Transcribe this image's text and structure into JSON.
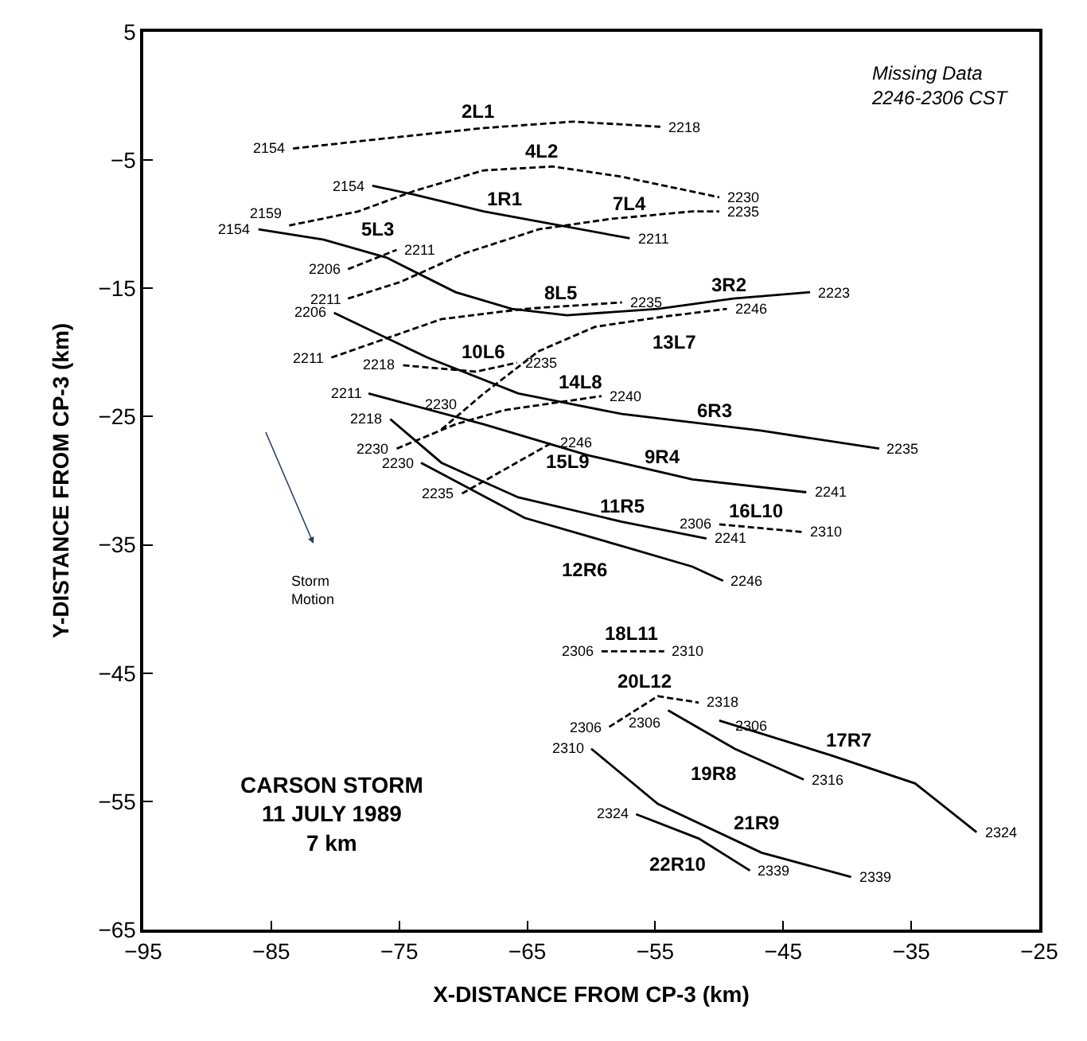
{
  "chart_data": {
    "type": "line",
    "xlabel": "X-DISTANCE FROM CP-3 (km)",
    "ylabel": "Y-DISTANCE FROM CP-3 (km)",
    "xlim": [
      -95,
      -25
    ],
    "xticks": [
      -95,
      -85,
      -75,
      -65,
      -55,
      -45,
      -35,
      -25
    ],
    "ylim": [
      -65,
      5
    ],
    "yticks": [
      5,
      -5,
      -15,
      -25,
      -35,
      -45,
      -55,
      -65
    ],
    "grid": false,
    "legend": false,
    "series": [
      {
        "name": "2L1",
        "color": "#000000",
        "line_style": "dashed",
        "x": [
          -83.3,
          -76.0,
          -68.4,
          -61.4,
          -54.6
        ],
        "values": [
          -4.1,
          -3.3,
          -2.5,
          -2.0,
          -2.4
        ]
      },
      {
        "name": "4L2",
        "color": "#000000",
        "line_style": "dashed",
        "x": [
          -83.6,
          -78.2,
          -73.8,
          -68.4,
          -63.0,
          -57.6,
          -50.0
        ],
        "values": [
          -10.1,
          -9.0,
          -7.4,
          -5.8,
          -5.5,
          -6.3,
          -7.9
        ]
      },
      {
        "name": "1R1",
        "color": "#000000",
        "line_style": "solid",
        "x": [
          -77.1,
          -73.8,
          -68.4,
          -63.0,
          -57.0
        ],
        "values": [
          -7.0,
          -7.7,
          -9.0,
          -10.0,
          -11.1
        ]
      },
      {
        "name": "5L3",
        "color": "#000000",
        "line_style": "dashed",
        "x": [
          -79.0,
          -75.2
        ],
        "values": [
          -13.5,
          -12.0
        ]
      },
      {
        "name": "3R2",
        "color": "#000000",
        "line_style": "solid",
        "x": [
          -86.0,
          -80.9,
          -76.0,
          -70.6,
          -66.2,
          -61.9,
          -54.8,
          -48.9,
          -42.9
        ],
        "values": [
          -10.4,
          -11.2,
          -12.6,
          -15.3,
          -16.6,
          -17.1,
          -16.6,
          -15.8,
          -15.3
        ]
      },
      {
        "name": "7L4",
        "color": "#000000",
        "line_style": "dashed",
        "x": [
          -79.0,
          -74.9,
          -70.0,
          -64.1,
          -58.6,
          -52.1,
          -50.0
        ],
        "values": [
          -15.8,
          -14.5,
          -12.3,
          -10.4,
          -9.6,
          -9.0,
          -9.0
        ]
      },
      {
        "name": "8L5",
        "color": "#000000",
        "line_style": "dashed",
        "x": [
          -80.3,
          -71.7,
          -65.2,
          -57.6
        ],
        "values": [
          -20.4,
          -17.4,
          -16.6,
          -16.1
        ]
      },
      {
        "name": "6R3",
        "color": "#000000",
        "line_style": "solid",
        "x": [
          -80.1,
          -72.8,
          -65.7,
          -57.6,
          -46.7,
          -37.5
        ],
        "values": [
          -16.9,
          -20.4,
          -23.2,
          -24.8,
          -26.1,
          -27.5
        ]
      },
      {
        "name": "10L6",
        "color": "#000000",
        "line_style": "dashed",
        "x": [
          -74.7,
          -69.0,
          -65.8
        ],
        "values": [
          -21.0,
          -21.5,
          -20.8
        ]
      },
      {
        "name": "13L7",
        "color": "#000000",
        "line_style": "dashed",
        "x": [
          -71.7,
          -68.4,
          -64.1,
          -59.7,
          -54.3,
          -49.4
        ],
        "values": [
          -26.0,
          -23.2,
          -19.9,
          -18.0,
          -17.2,
          -16.6
        ]
      },
      {
        "name": "14L8",
        "color": "#000000",
        "line_style": "dashed",
        "x": [
          -75.2,
          -70.6,
          -66.8,
          -59.2
        ],
        "values": [
          -27.5,
          -25.6,
          -24.5,
          -23.4
        ]
      },
      {
        "name": "9R4",
        "color": "#000000",
        "line_style": "solid",
        "x": [
          -77.4,
          -68.4,
          -60.3,
          -52.1,
          -43.2
        ],
        "values": [
          -23.2,
          -25.6,
          -28.0,
          -29.9,
          -30.9
        ]
      },
      {
        "name": "11R5",
        "color": "#000000",
        "line_style": "solid",
        "x": [
          -75.7,
          -71.7,
          -65.7,
          -57.6,
          -51.0
        ],
        "values": [
          -25.2,
          -28.6,
          -31.3,
          -33.2,
          -34.5
        ]
      },
      {
        "name": "12R6",
        "color": "#000000",
        "line_style": "solid",
        "x": [
          -73.3,
          -65.2,
          -57.6,
          -52.1,
          -49.7
        ],
        "values": [
          -28.6,
          -32.9,
          -35.1,
          -36.7,
          -37.8
        ]
      },
      {
        "name": "15L9",
        "color": "#000000",
        "line_style": "dashed",
        "x": [
          -70.1,
          -63.0
        ],
        "values": [
          -31.0,
          -27.0
        ]
      },
      {
        "name": "16L10",
        "color": "#000000",
        "line_style": "dashed",
        "x": [
          -50.0,
          -43.5
        ],
        "values": [
          -33.4,
          -34.0
        ]
      },
      {
        "name": "18L11",
        "color": "#000000",
        "line_style": "dashed",
        "x": [
          -59.2,
          -54.3
        ],
        "values": [
          -43.3,
          -43.3
        ]
      },
      {
        "name": "20L12",
        "color": "#000000",
        "line_style": "dashed",
        "x": [
          -58.6,
          -54.8,
          -51.6
        ],
        "values": [
          -49.2,
          -46.8,
          -47.3
        ]
      },
      {
        "name": "17R7",
        "color": "#000000",
        "line_style": "solid",
        "x": [
          -50.0,
          -41.3,
          -34.7,
          -29.9
        ],
        "values": [
          -48.7,
          -51.4,
          -53.6,
          -57.4
        ]
      },
      {
        "name": "19R8",
        "color": "#000000",
        "line_style": "solid",
        "x": [
          -54.0,
          -48.8,
          -43.4
        ],
        "values": [
          -47.9,
          -50.9,
          -53.3
        ]
      },
      {
        "name": "21R9",
        "color": "#000000",
        "line_style": "solid",
        "x": [
          -60.0,
          -54.8,
          -46.7,
          -39.7
        ],
        "values": [
          -50.9,
          -55.2,
          -59.0,
          -60.9
        ]
      },
      {
        "name": "22R10",
        "color": "#000000",
        "line_style": "solid",
        "x": [
          -56.5,
          -51.6,
          -47.6
        ],
        "values": [
          -56.0,
          -57.9,
          -60.4
        ]
      }
    ],
    "annotations": [
      "Missing Data\n2246-2306 CST",
      "CARSON STORM\n11 JULY 1989\n7 km",
      "Storm\nMotion",
      {
        "text": "2154",
        "x": -83.3,
        "y": -4.1
      },
      {
        "text": "2218",
        "x": -54.6,
        "y": -2.4
      },
      {
        "text": "2159",
        "x": -83.6,
        "y": -10.1
      },
      {
        "text": "2230",
        "x": -50.0,
        "y": -7.9
      },
      {
        "text": "2154",
        "x": -77.1,
        "y": -7.0
      },
      {
        "text": "2211",
        "x": -57.0,
        "y": -11.1
      },
      {
        "text": "2206",
        "x": -79.0,
        "y": -13.5
      },
      {
        "text": "2211",
        "x": -75.2,
        "y": -12.0
      },
      {
        "text": "2154",
        "x": -86.0,
        "y": -10.4
      },
      {
        "text": "2223",
        "x": -42.9,
        "y": -15.3
      },
      {
        "text": "2211",
        "x": -79.0,
        "y": -15.8
      },
      {
        "text": "2235",
        "x": -50.0,
        "y": -9.0
      },
      {
        "text": "2211",
        "x": -80.3,
        "y": -20.4
      },
      {
        "text": "2235",
        "x": -57.6,
        "y": -16.1
      },
      {
        "text": "2206",
        "x": -80.1,
        "y": -16.9
      },
      {
        "text": "2235",
        "x": -37.5,
        "y": -27.5
      },
      {
        "text": "2218",
        "x": -74.7,
        "y": -21.0
      },
      {
        "text": "2235",
        "x": -65.8,
        "y": -20.8
      },
      {
        "text": "2230",
        "x": -71.7,
        "y": -26.0
      },
      {
        "text": "2246",
        "x": -49.4,
        "y": -16.6
      },
      {
        "text": "2230",
        "x": -75.2,
        "y": -27.5
      },
      {
        "text": "2240",
        "x": -59.2,
        "y": -23.4
      },
      {
        "text": "2211",
        "x": -77.4,
        "y": -23.2
      },
      {
        "text": "2241",
        "x": -43.2,
        "y": -30.9
      },
      {
        "text": "2218",
        "x": -75.7,
        "y": -25.2
      },
      {
        "text": "2241",
        "x": -51.0,
        "y": -34.5
      },
      {
        "text": "2230",
        "x": -73.3,
        "y": -28.6
      },
      {
        "text": "2246",
        "x": -49.7,
        "y": -37.8
      },
      {
        "text": "2235",
        "x": -70.1,
        "y": -31.0
      },
      {
        "text": "2246",
        "x": -63.0,
        "y": -27.0
      },
      {
        "text": "2306",
        "x": -50.0,
        "y": -33.4
      },
      {
        "text": "2310",
        "x": -43.5,
        "y": -34.0
      },
      {
        "text": "2306",
        "x": -59.2,
        "y": -43.3
      },
      {
        "text": "2310",
        "x": -54.3,
        "y": -43.3
      },
      {
        "text": "2306",
        "x": -58.6,
        "y": -49.2
      },
      {
        "text": "2318",
        "x": -51.6,
        "y": -47.3
      },
      {
        "text": "2306",
        "x": -50.0,
        "y": -48.7
      },
      {
        "text": "2324",
        "x": -29.9,
        "y": -57.4
      },
      {
        "text": "2306",
        "x": -54.0,
        "y": -47.9
      },
      {
        "text": "2316",
        "x": -43.4,
        "y": -53.3
      },
      {
        "text": "2310",
        "x": -60.0,
        "y": -50.9
      },
      {
        "text": "2339",
        "x": -39.7,
        "y": -60.9
      },
      {
        "text": "2324",
        "x": -56.5,
        "y": -56.0
      },
      {
        "text": "2339",
        "x": -47.6,
        "y": -60.4
      }
    ]
  }
}
